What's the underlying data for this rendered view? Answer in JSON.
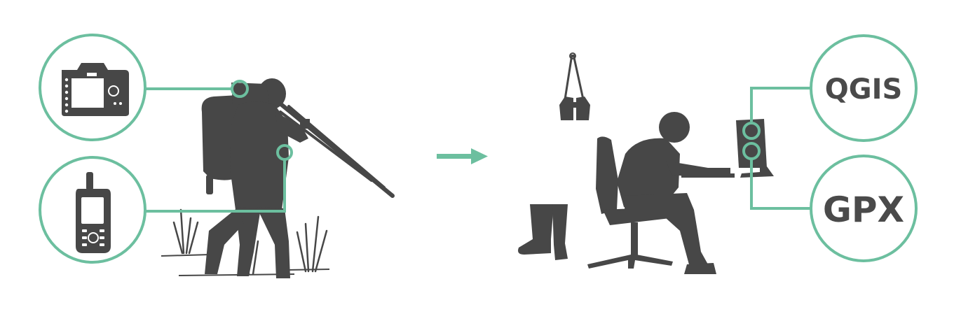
{
  "colors": {
    "accent": "#6cbf9f",
    "silhouette": "#474747",
    "background": "#ffffff"
  },
  "field": {
    "devices": [
      {
        "name": "camera-icon"
      },
      {
        "name": "gps-handheld-icon"
      }
    ],
    "figure": "hiker-with-tripod-silhouette"
  },
  "transition": {
    "icon": "arrow-right-icon"
  },
  "office": {
    "software": [
      {
        "label": "QGIS"
      },
      {
        "label": "GPX"
      }
    ],
    "props": [
      "binoculars-icon",
      "rubber-boots-icon",
      "person-at-computer-silhouette"
    ]
  }
}
